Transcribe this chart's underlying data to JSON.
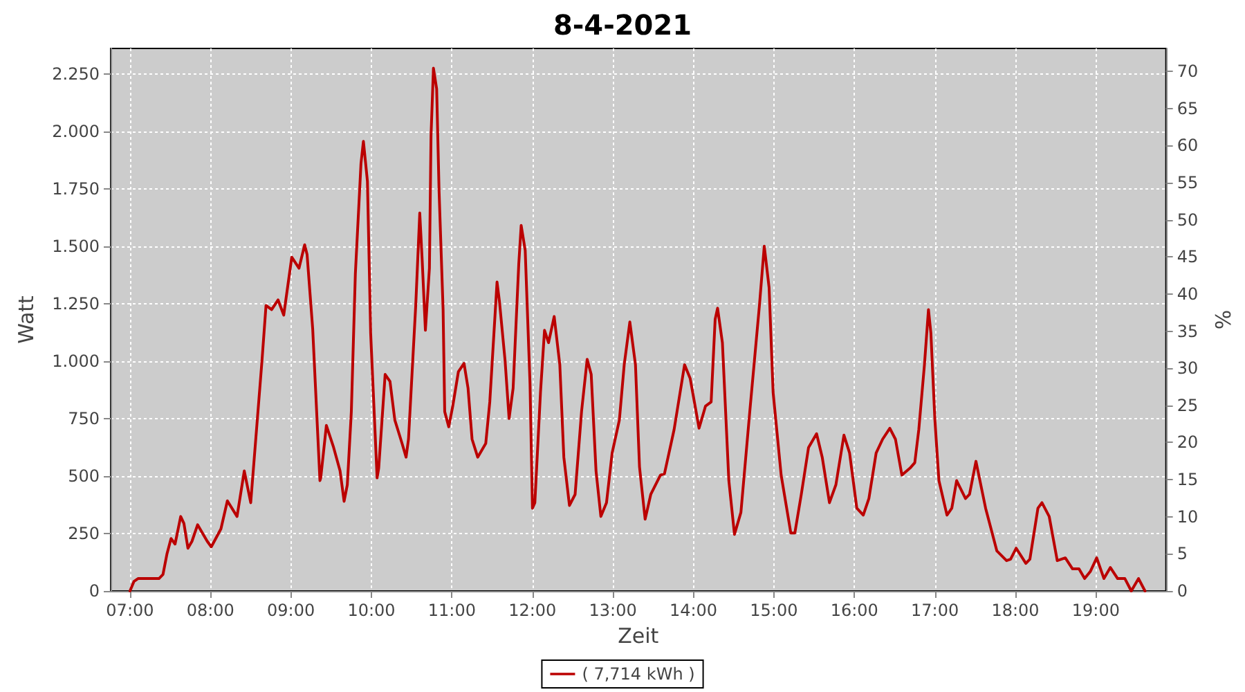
{
  "chart_data": {
    "type": "line",
    "title": "8-4-2021",
    "xlabel": "Zeit",
    "ylabel": "Watt",
    "y2label": "%",
    "xlim": [
      6.76,
      19.87
    ],
    "xticks": [
      {
        "value": 7,
        "label": "07:00"
      },
      {
        "value": 8,
        "label": "08:00"
      },
      {
        "value": 9,
        "label": "09:00"
      },
      {
        "value": 10,
        "label": "10:00"
      },
      {
        "value": 11,
        "label": "11:00"
      },
      {
        "value": 12,
        "label": "12:00"
      },
      {
        "value": 13,
        "label": "13:00"
      },
      {
        "value": 14,
        "label": "14:00"
      },
      {
        "value": 15,
        "label": "15:00"
      },
      {
        "value": 16,
        "label": "16:00"
      },
      {
        "value": 17,
        "label": "17:00"
      },
      {
        "value": 18,
        "label": "18:00"
      },
      {
        "value": 19,
        "label": "19:00"
      }
    ],
    "ylim": [
      0,
      2360
    ],
    "yticks": [
      0,
      250,
      500,
      750,
      {
        "value": 1000,
        "label": "1.000"
      },
      {
        "value": 1250,
        "label": "1.250"
      },
      {
        "value": 1500,
        "label": "1.500"
      },
      {
        "value": 1750,
        "label": "1.750"
      },
      {
        "value": 2000,
        "label": "2.000"
      },
      {
        "value": 2250,
        "label": "2.250"
      }
    ],
    "y2lim": [
      0,
      73.1
    ],
    "y2ticks": [
      0,
      5,
      10,
      15,
      20,
      25,
      30,
      35,
      40,
      45,
      50,
      55,
      60,
      65,
      70
    ],
    "grid": true,
    "legend": "bottom",
    "marker": "none",
    "line_style": "solid",
    "series": [
      {
        "name": "( 7,714 kWh )",
        "color": "#bb0000",
        "x": [
          7.0,
          7.05,
          7.1,
          7.36,
          7.41,
          7.46,
          7.51,
          7.56,
          7.63,
          7.67,
          7.72,
          7.77,
          7.84,
          7.96,
          8.01,
          8.13,
          8.21,
          8.33,
          8.42,
          8.5,
          8.64,
          8.69,
          8.76,
          8.84,
          8.91,
          9.01,
          9.1,
          9.17,
          9.2,
          9.27,
          9.36,
          9.37,
          9.44,
          9.53,
          9.61,
          9.66,
          9.7,
          9.75,
          9.8,
          9.87,
          9.9,
          9.95,
          9.99,
          10.07,
          10.09,
          10.17,
          10.23,
          10.29,
          10.38,
          10.43,
          10.46,
          10.55,
          10.6,
          10.63,
          10.67,
          10.72,
          10.74,
          10.77,
          10.81,
          10.84,
          10.89,
          10.91,
          10.96,
          11.01,
          11.08,
          11.15,
          11.2,
          11.25,
          11.32,
          11.42,
          11.47,
          11.56,
          11.59,
          11.66,
          11.71,
          11.76,
          11.83,
          11.86,
          11.91,
          11.97,
          12.0,
          12.03,
          12.1,
          12.15,
          12.2,
          12.27,
          12.34,
          12.39,
          12.46,
          12.53,
          12.61,
          12.68,
          12.73,
          12.79,
          12.85,
          12.92,
          12.99,
          13.08,
          13.14,
          13.21,
          13.28,
          13.33,
          13.4,
          13.47,
          13.59,
          13.64,
          13.76,
          13.89,
          13.96,
          14.07,
          14.15,
          14.22,
          14.27,
          14.3,
          14.36,
          14.44,
          14.51,
          14.59,
          14.7,
          14.82,
          14.88,
          14.94,
          14.99,
          15.09,
          15.21,
          15.26,
          15.34,
          15.43,
          15.53,
          15.6,
          15.69,
          15.77,
          15.87,
          15.94,
          16.03,
          16.11,
          16.18,
          16.27,
          16.35,
          16.44,
          16.51,
          16.59,
          16.69,
          16.75,
          16.8,
          16.87,
          16.92,
          16.95,
          17.0,
          17.05,
          17.15,
          17.21,
          17.27,
          17.38,
          17.43,
          17.51,
          17.63,
          17.77,
          17.89,
          17.94,
          18.01,
          18.13,
          18.18,
          18.28,
          18.33,
          18.42,
          18.52,
          18.62,
          18.71,
          18.79,
          18.86,
          18.93,
          19.01,
          19.1,
          19.18,
          19.27,
          19.36,
          19.44,
          19.53,
          19.61
        ],
        "values": [
          0,
          42,
          54,
          54,
          72,
          162,
          228,
          204,
          324,
          294,
          186,
          216,
          288,
          216,
          192,
          270,
          392,
          324,
          522,
          384,
          1002,
          1242,
          1224,
          1266,
          1200,
          1452,
          1404,
          1506,
          1464,
          1140,
          480,
          492,
          720,
          624,
          522,
          390,
          462,
          780,
          1380,
          1860,
          1956,
          1782,
          1122,
          492,
          534,
          942,
          912,
          744,
          642,
          582,
          660,
          1242,
          1644,
          1440,
          1134,
          1404,
          1980,
          2274,
          2184,
          1740,
          1224,
          780,
          714,
          804,
          954,
          990,
          882,
          660,
          582,
          642,
          822,
          1344,
          1260,
          1002,
          750,
          882,
          1422,
          1590,
          1482,
          900,
          360,
          384,
          864,
          1134,
          1080,
          1194,
          984,
          582,
          372,
          420,
          780,
          1008,
          942,
          522,
          324,
          384,
          600,
          744,
          984,
          1170,
          984,
          540,
          312,
          420,
          504,
          510,
          702,
          984,
          924,
          708,
          804,
          822,
          1182,
          1230,
          1080,
          480,
          246,
          342,
          780,
          1242,
          1500,
          1320,
          864,
          504,
          252,
          252,
          420,
          624,
          684,
          582,
          384,
          462,
          678,
          600,
          360,
          330,
          402,
          600,
          660,
          708,
          660,
          504,
          534,
          558,
          702,
          984,
          1224,
          1122,
          744,
          480,
          330,
          360,
          480,
          402,
          420,
          564,
          360,
          174,
          132,
          138,
          186,
          120,
          138,
          360,
          384,
          324,
          132,
          144,
          96,
          96,
          54,
          84,
          144,
          54,
          102,
          54,
          54,
          0,
          54,
          0
        ]
      }
    ]
  }
}
